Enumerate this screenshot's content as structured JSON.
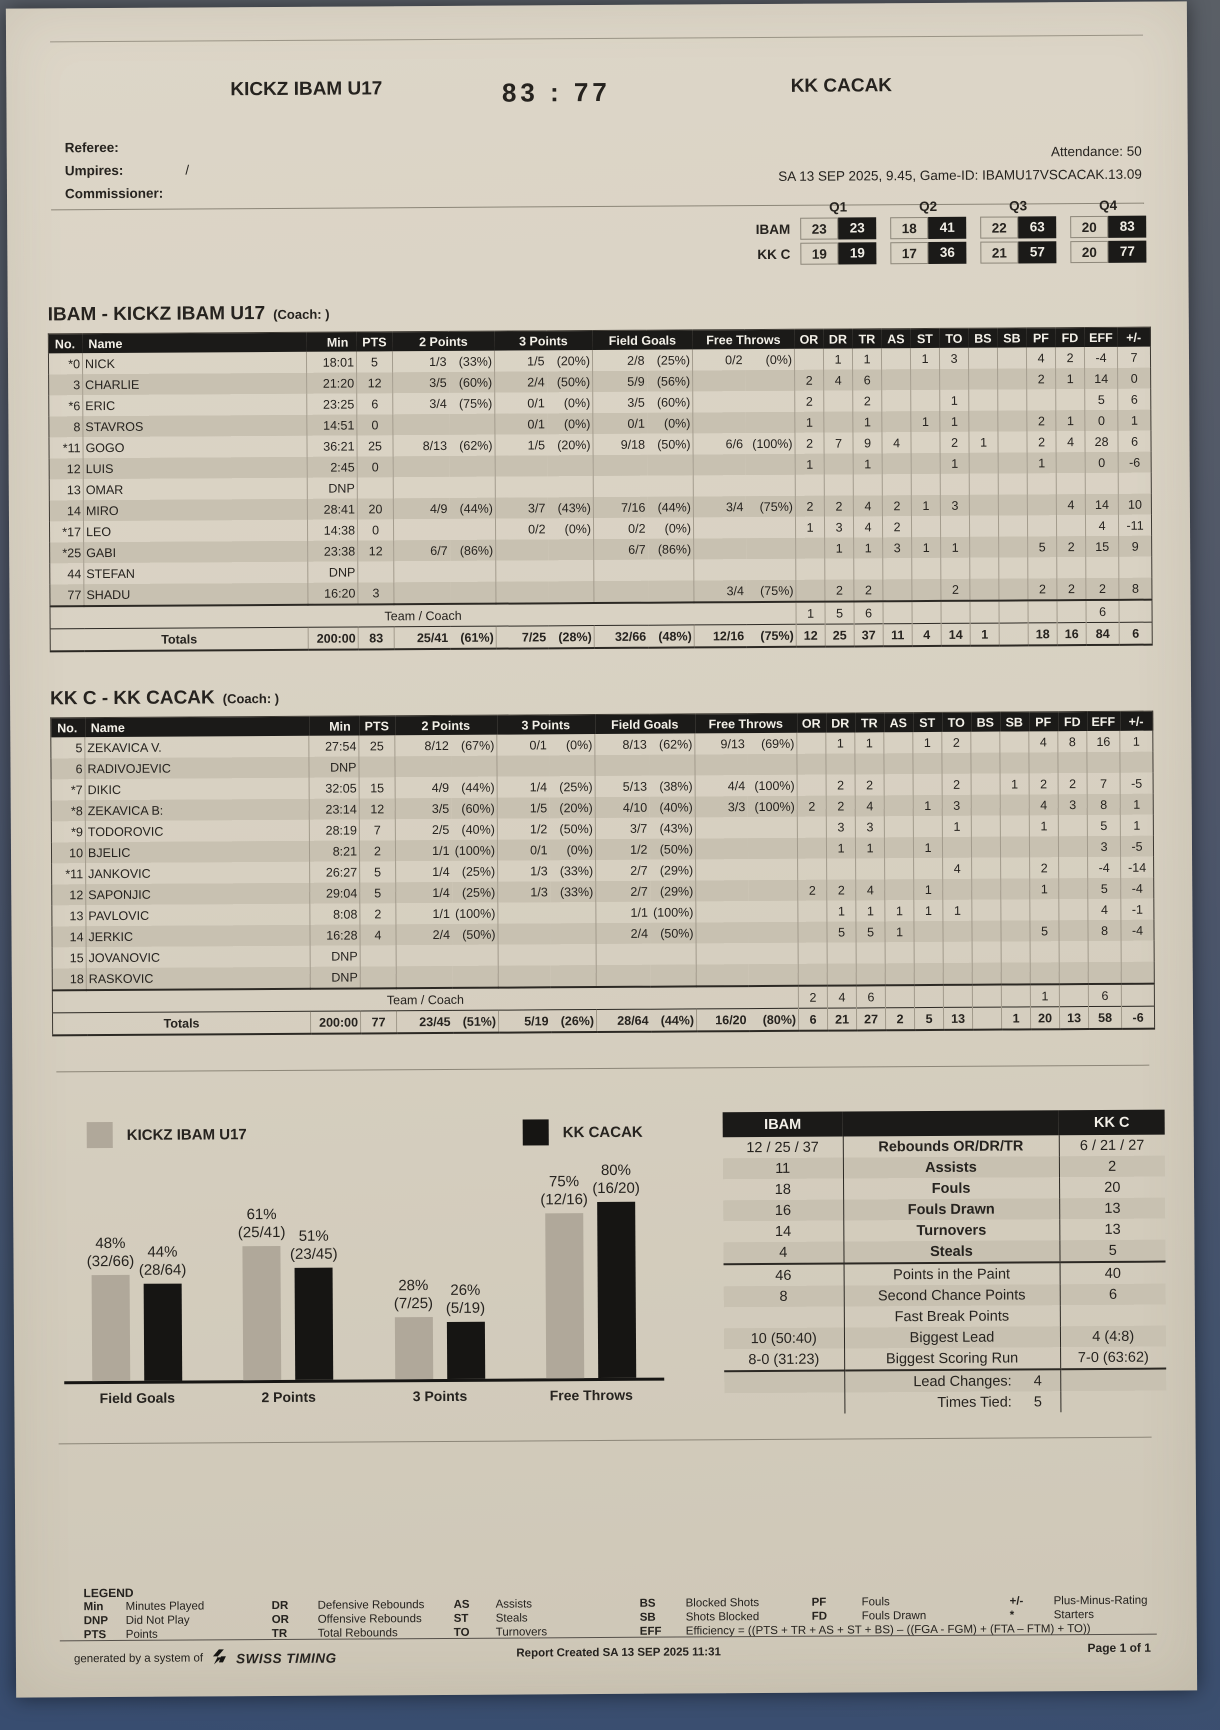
{
  "header": {
    "home_team": "KICKZ IBAM U17",
    "score": "83 : 77",
    "away_team": "KK CACAK"
  },
  "officials": {
    "referee_label": "Referee:",
    "umpires_label": "Umpires:",
    "umpires_value": "/",
    "commissioner_label": "Commissioner:",
    "attendance": "Attendance: 50",
    "game_info": "SA 13 SEP 2025,  9.45,  Game-ID: IBAMU17VSCACAK.13.09"
  },
  "quarters": {
    "labels": [
      "Q1",
      "Q2",
      "Q3",
      "Q4"
    ],
    "rows": [
      {
        "team": "IBAM",
        "periods": [
          [
            "23",
            "23"
          ],
          [
            "18",
            "41"
          ],
          [
            "22",
            "63"
          ],
          [
            "20",
            "83"
          ]
        ]
      },
      {
        "team": "KK C",
        "periods": [
          [
            "19",
            "19"
          ],
          [
            "17",
            "36"
          ],
          [
            "21",
            "57"
          ],
          [
            "20",
            "77"
          ]
        ]
      }
    ]
  },
  "box_columns": [
    "No.",
    "Name",
    "Min",
    "PTS",
    "2 Points",
    "3 Points",
    "Field Goals",
    "Free Throws",
    "OR",
    "DR",
    "TR",
    "AS",
    "ST",
    "TO",
    "BS",
    "SB",
    "PF",
    "FD",
    "EFF",
    "+/-"
  ],
  "teams": [
    {
      "title": "IBAM - KICKZ IBAM U17",
      "coach_label": "(Coach: )",
      "rows": [
        [
          "*0",
          "NICK",
          "18:01",
          "5",
          "1/3",
          "(33%)",
          "1/5",
          "(20%)",
          "2/8",
          "(25%)",
          "0/2",
          "(0%)",
          "",
          "1",
          "1",
          "",
          "1",
          "3",
          "",
          "",
          "4",
          "2",
          "-4",
          "7"
        ],
        [
          "3",
          "CHARLIE",
          "21:20",
          "12",
          "3/5",
          "(60%)",
          "2/4",
          "(50%)",
          "5/9",
          "(56%)",
          "",
          "",
          "2",
          "4",
          "6",
          "",
          "",
          "",
          "",
          "",
          "2",
          "1",
          "14",
          "0"
        ],
        [
          "*6",
          "ERIC",
          "23:25",
          "6",
          "3/4",
          "(75%)",
          "0/1",
          "(0%)",
          "3/5",
          "(60%)",
          "",
          "",
          "2",
          "",
          "2",
          "",
          "",
          "1",
          "",
          "",
          "",
          "",
          "5",
          "6"
        ],
        [
          "8",
          "STAVROS",
          "14:51",
          "0",
          "",
          "",
          "0/1",
          "(0%)",
          "0/1",
          "(0%)",
          "",
          "",
          "1",
          "",
          "1",
          "",
          "1",
          "1",
          "",
          "",
          "2",
          "1",
          "0",
          "1"
        ],
        [
          "*11",
          "GOGO",
          "36:21",
          "25",
          "8/13",
          "(62%)",
          "1/5",
          "(20%)",
          "9/18",
          "(50%)",
          "6/6",
          "(100%)",
          "2",
          "7",
          "9",
          "4",
          "",
          "2",
          "1",
          "",
          "2",
          "4",
          "28",
          "6"
        ],
        [
          "12",
          "LUIS",
          "2:45",
          "0",
          "",
          "",
          "",
          "",
          "",
          "",
          "",
          "",
          "1",
          "",
          "1",
          "",
          "",
          "1",
          "",
          "",
          "1",
          "",
          "0",
          "-6"
        ],
        [
          "13",
          "OMAR",
          "DNP",
          "",
          "",
          "",
          "",
          "",
          "",
          "",
          "",
          "",
          "",
          "",
          "",
          "",
          "",
          "",
          "",
          "",
          "",
          "",
          "",
          ""
        ],
        [
          "14",
          "MIRO",
          "28:41",
          "20",
          "4/9",
          "(44%)",
          "3/7",
          "(43%)",
          "7/16",
          "(44%)",
          "3/4",
          "(75%)",
          "2",
          "2",
          "4",
          "2",
          "1",
          "3",
          "",
          "",
          "",
          "4",
          "14",
          "10"
        ],
        [
          "*17",
          "LEO",
          "14:38",
          "0",
          "",
          "",
          "0/2",
          "(0%)",
          "0/2",
          "(0%)",
          "",
          "",
          "1",
          "3",
          "4",
          "2",
          "",
          "",
          "",
          "",
          "",
          "",
          "4",
          "-11"
        ],
        [
          "*25",
          "GABI",
          "23:38",
          "12",
          "6/7",
          "(86%)",
          "",
          "",
          "6/7",
          "(86%)",
          "",
          "",
          "",
          "1",
          "1",
          "3",
          "1",
          "1",
          "",
          "",
          "5",
          "2",
          "15",
          "9"
        ],
        [
          "44",
          "STEFAN",
          "DNP",
          "",
          "",
          "",
          "",
          "",
          "",
          "",
          "",
          "",
          "",
          "",
          "",
          "",
          "",
          "",
          "",
          "",
          "",
          "",
          "",
          ""
        ],
        [
          "77",
          "SHADU",
          "16:20",
          "3",
          "",
          "",
          "",
          "",
          "",
          "",
          "3/4",
          "(75%)",
          "",
          "2",
          "2",
          "",
          "",
          "2",
          "",
          "",
          "2",
          "2",
          "2",
          "8"
        ]
      ],
      "team_row": [
        "",
        "Team / Coach",
        "",
        "",
        "",
        "",
        "",
        "",
        "",
        "",
        "",
        "",
        "1",
        "5",
        "6",
        "",
        "",
        "",
        "",
        "",
        "",
        "",
        "6",
        ""
      ],
      "totals": [
        "",
        "Totals",
        "200:00",
        "83",
        "25/41",
        "(61%)",
        "7/25",
        "(28%)",
        "32/66",
        "(48%)",
        "12/16",
        "(75%)",
        "12",
        "25",
        "37",
        "11",
        "4",
        "14",
        "1",
        "",
        "18",
        "16",
        "84",
        "6"
      ]
    },
    {
      "title": "KK C - KK CACAK",
      "coach_label": "(Coach: )",
      "rows": [
        [
          "5",
          "ZEKAVICA V.",
          "27:54",
          "25",
          "8/12",
          "(67%)",
          "0/1",
          "(0%)",
          "8/13",
          "(62%)",
          "9/13",
          "(69%)",
          "",
          "1",
          "1",
          "",
          "1",
          "2",
          "",
          "",
          "4",
          "8",
          "16",
          "1"
        ],
        [
          "6",
          "RADIVOJEVIC",
          "DNP",
          "",
          "",
          "",
          "",
          "",
          "",
          "",
          "",
          "",
          "",
          "",
          "",
          "",
          "",
          "",
          "",
          "",
          "",
          "",
          "",
          ""
        ],
        [
          "*7",
          "DIKIC",
          "32:05",
          "15",
          "4/9",
          "(44%)",
          "1/4",
          "(25%)",
          "5/13",
          "(38%)",
          "4/4",
          "(100%)",
          "",
          "2",
          "2",
          "",
          "",
          "2",
          "",
          "1",
          "2",
          "2",
          "7",
          "-5"
        ],
        [
          "*8",
          "ZEKAVICA B:",
          "23:14",
          "12",
          "3/5",
          "(60%)",
          "1/5",
          "(20%)",
          "4/10",
          "(40%)",
          "3/3",
          "(100%)",
          "2",
          "2",
          "4",
          "",
          "1",
          "3",
          "",
          "",
          "4",
          "3",
          "8",
          "1"
        ],
        [
          "*9",
          "TODOROVIC",
          "28:19",
          "7",
          "2/5",
          "(40%)",
          "1/2",
          "(50%)",
          "3/7",
          "(43%)",
          "",
          "",
          "",
          "3",
          "3",
          "",
          "",
          "1",
          "",
          "",
          "1",
          "",
          "5",
          "1"
        ],
        [
          "10",
          "BJELIC",
          "8:21",
          "2",
          "1/1",
          "(100%)",
          "0/1",
          "(0%)",
          "1/2",
          "(50%)",
          "",
          "",
          "",
          "1",
          "1",
          "",
          "1",
          "",
          "",
          "",
          "",
          "",
          "3",
          "-5"
        ],
        [
          "*11",
          "JANKOVIC",
          "26:27",
          "5",
          "1/4",
          "(25%)",
          "1/3",
          "(33%)",
          "2/7",
          "(29%)",
          "",
          "",
          "",
          "",
          "",
          "",
          "",
          "4",
          "",
          "",
          "2",
          "",
          "-4",
          "-14"
        ],
        [
          "12",
          "SAPONJIC",
          "29:04",
          "5",
          "1/4",
          "(25%)",
          "1/3",
          "(33%)",
          "2/7",
          "(29%)",
          "",
          "",
          "2",
          "2",
          "4",
          "",
          "1",
          "",
          "",
          "",
          "1",
          "",
          "5",
          "-4"
        ],
        [
          "13",
          "PAVLOVIC",
          "8:08",
          "2",
          "1/1",
          "(100%)",
          "",
          "",
          "1/1",
          "(100%)",
          "",
          "",
          "",
          "1",
          "1",
          "1",
          "1",
          "1",
          "",
          "",
          "",
          "",
          "4",
          "-1"
        ],
        [
          "14",
          "JERKIC",
          "16:28",
          "4",
          "2/4",
          "(50%)",
          "",
          "",
          "2/4",
          "(50%)",
          "",
          "",
          "",
          "5",
          "5",
          "1",
          "",
          "",
          "",
          "",
          "5",
          "",
          "8",
          "-4"
        ],
        [
          "15",
          "JOVANOVIC",
          "DNP",
          "",
          "",
          "",
          "",
          "",
          "",
          "",
          "",
          "",
          "",
          "",
          "",
          "",
          "",
          "",
          "",
          "",
          "",
          "",
          "",
          ""
        ],
        [
          "18",
          "RASKOVIC",
          "DNP",
          "",
          "",
          "",
          "",
          "",
          "",
          "",
          "",
          "",
          "",
          "",
          "",
          "",
          "",
          "",
          "",
          "",
          "",
          "",
          "",
          ""
        ]
      ],
      "team_row": [
        "",
        "Team / Coach",
        "",
        "",
        "",
        "",
        "",
        "",
        "",
        "",
        "",
        "",
        "2",
        "4",
        "6",
        "",
        "",
        "",
        "",
        "",
        "1",
        "",
        "6",
        ""
      ],
      "totals": [
        "",
        "Totals",
        "200:00",
        "77",
        "23/45",
        "(51%)",
        "5/19",
        "(26%)",
        "28/64",
        "(44%)",
        "16/20",
        "(80%)",
        "6",
        "21",
        "27",
        "2",
        "5",
        "13",
        "",
        "1",
        "20",
        "13",
        "58",
        "-6"
      ]
    }
  ],
  "chart_data": {
    "type": "bar",
    "categories": [
      "Field Goals",
      "2 Points",
      "3 Points",
      "Free Throws"
    ],
    "series": [
      {
        "name": "KICKZ IBAM U17",
        "color": "#b0a89a",
        "values": [
          48,
          61,
          28,
          75
        ],
        "labels": [
          "48%",
          "61%",
          "28%",
          "75%"
        ],
        "sublabels": [
          "(32/66)",
          "(25/41)",
          "(7/25)",
          "(12/16)"
        ]
      },
      {
        "name": "KK CACAK",
        "color": "#161513",
        "values": [
          44,
          51,
          26,
          80
        ],
        "labels": [
          "44%",
          "51%",
          "26%",
          "80%"
        ],
        "sublabels": [
          "(28/64)",
          "(23/45)",
          "(5/19)",
          "(16/20)"
        ]
      }
    ],
    "ylim": [
      0,
      100
    ],
    "grid": false,
    "legend_position": "top"
  },
  "comparison": {
    "home_header": "IBAM",
    "away_header": "KK C",
    "rows": [
      {
        "left": "12 / 25 / 37",
        "label": "Rebounds  OR/DR/TR",
        "right": "6 / 21 / 27",
        "bold": true,
        "sep": false
      },
      {
        "left": "11",
        "label": "Assists",
        "right": "2",
        "bold": true,
        "sep": false
      },
      {
        "left": "18",
        "label": "Fouls",
        "right": "20",
        "bold": true,
        "sep": false
      },
      {
        "left": "16",
        "label": "Fouls Drawn",
        "right": "13",
        "bold": true,
        "sep": false
      },
      {
        "left": "14",
        "label": "Turnovers",
        "right": "13",
        "bold": true,
        "sep": false
      },
      {
        "left": "4",
        "label": "Steals",
        "right": "5",
        "bold": true,
        "sep": false
      },
      {
        "left": "46",
        "label": "Points in the Paint",
        "right": "40",
        "bold": false,
        "sep": true
      },
      {
        "left": "8",
        "label": "Second Chance Points",
        "right": "6",
        "bold": false,
        "sep": false
      },
      {
        "left": "",
        "label": "Fast Break Points",
        "right": "",
        "bold": false,
        "sep": false
      },
      {
        "left": "10  (50:40)",
        "label": "Biggest Lead",
        "right": "4  (4:8)",
        "bold": false,
        "sep": false
      },
      {
        "left": "8-0  (31:23)",
        "label": "Biggest Scoring Run",
        "right": "7-0  (63:62)",
        "bold": false,
        "sep": false
      }
    ],
    "footer_rows": [
      {
        "label": "Lead Changes:",
        "value": "4"
      },
      {
        "label": "Times Tied:",
        "value": "5"
      }
    ]
  },
  "legend": {
    "title": "LEGEND",
    "groups": [
      [
        [
          "Min",
          "Minutes Played"
        ],
        [
          "DNP",
          "Did Not Play"
        ],
        [
          "PTS",
          "Points"
        ]
      ],
      [
        [
          "DR",
          "Defensive Rebounds"
        ],
        [
          "OR",
          "Offensive Rebounds"
        ],
        [
          "TR",
          "Total Rebounds"
        ]
      ],
      [
        [
          "AS",
          "Assists"
        ],
        [
          "ST",
          "Steals"
        ],
        [
          "TO",
          "Turnovers"
        ]
      ],
      [
        [
          "BS",
          "Blocked Shots"
        ],
        [
          "SB",
          "Shots Blocked"
        ],
        [
          "EFF",
          "Efficiency = ((PTS + TR + AS + ST + BS) – ((FGA - FGM) + (FTA – FTM) + TO))"
        ]
      ],
      [
        [
          "PF",
          "Fouls"
        ],
        [
          "FD",
          "Fouls Drawn"
        ]
      ],
      [
        [
          "+/-",
          "Plus-Minus-Rating"
        ],
        [
          "*",
          "Starters"
        ]
      ]
    ]
  },
  "footer": {
    "generated": "generated by a system of",
    "brand": "SWISS TIMING",
    "report": "Report Created  SA 13 SEP 2025 11:31",
    "page": "Page 1 of 1"
  }
}
